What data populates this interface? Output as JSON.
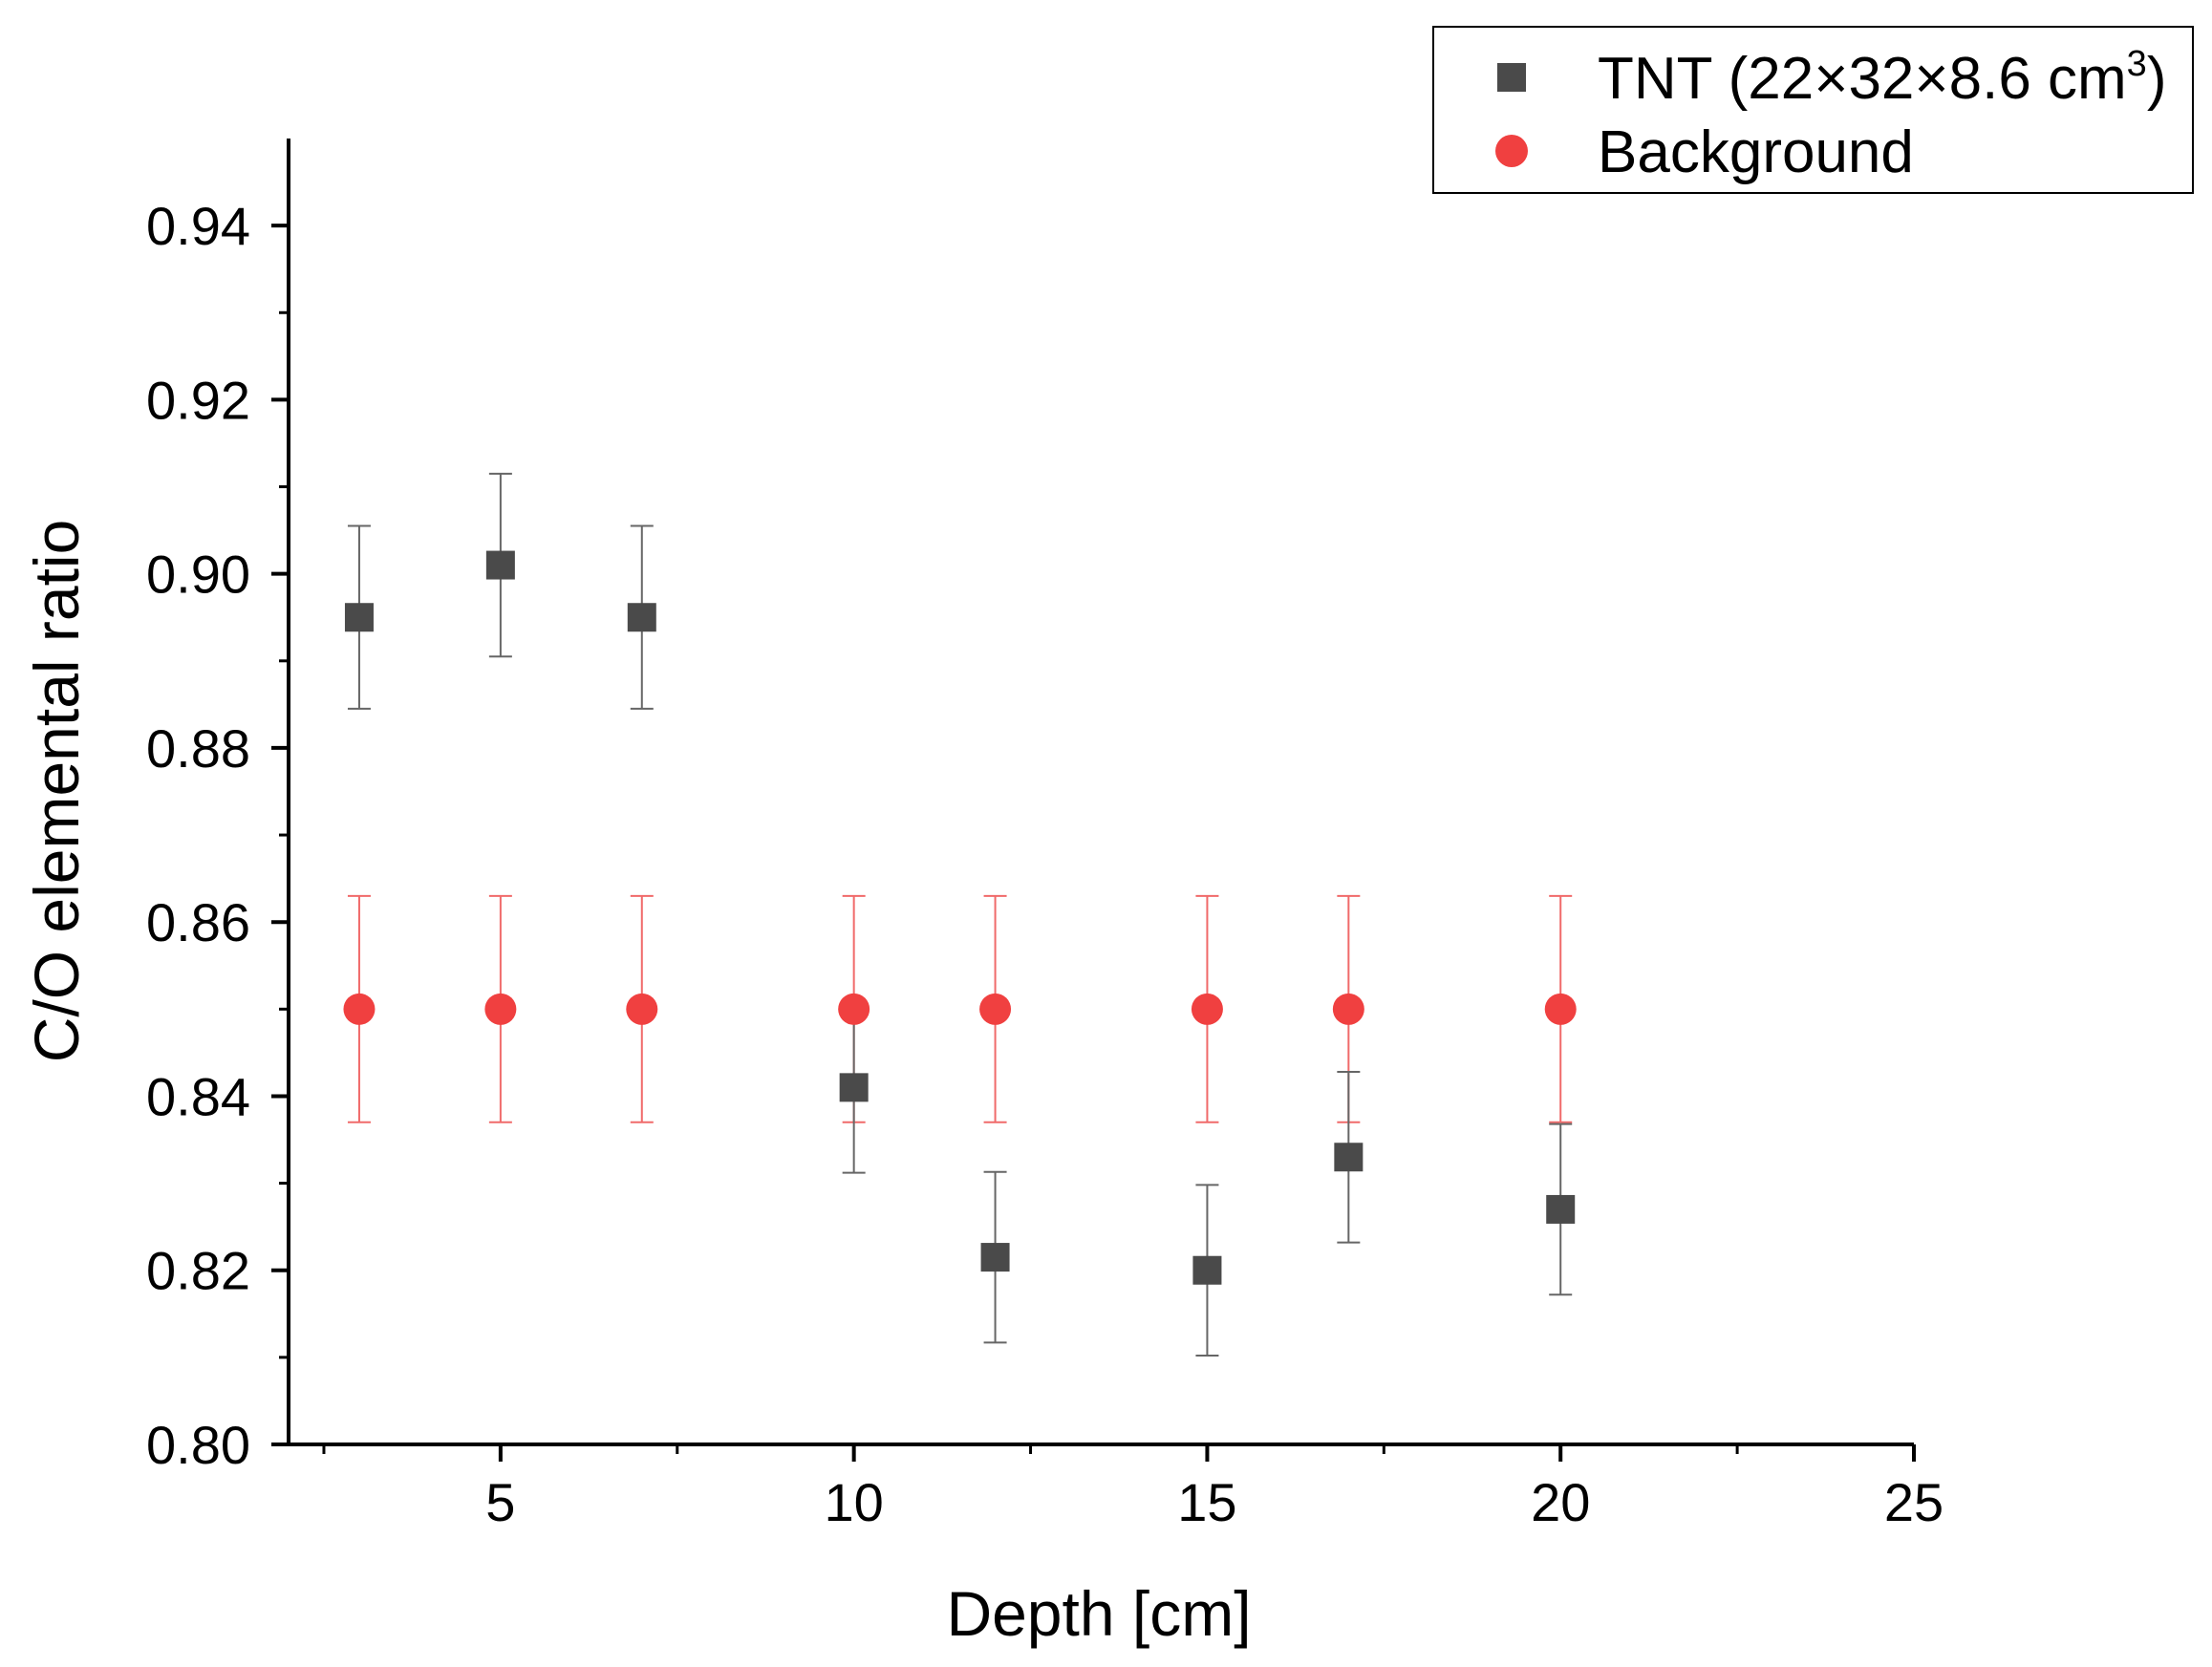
{
  "chart_data": {
    "type": "scatter",
    "title": "",
    "xlabel": "Depth [cm]",
    "ylabel": "C/O elemental ratio",
    "xlim": [
      2,
      25
    ],
    "ylim": [
      0.8,
      0.95
    ],
    "xticks": [
      5,
      10,
      15,
      20,
      25
    ],
    "xtick_labels": [
      "5",
      "10",
      "15",
      "20",
      "25"
    ],
    "xminor": [
      2.5,
      7.5,
      12.5,
      17.5,
      22.5
    ],
    "yticks": [
      0.8,
      0.82,
      0.84,
      0.86,
      0.88,
      0.9,
      0.92,
      0.94
    ],
    "ytick_labels": [
      "0.80",
      "0.82",
      "0.84",
      "0.86",
      "0.88",
      "0.90",
      "0.92",
      "0.94"
    ],
    "yminor": [
      0.81,
      0.83,
      0.85,
      0.87,
      0.89,
      0.91,
      0.93
    ],
    "grid": false,
    "legend_position": "top-right",
    "series": [
      {
        "name": "TNT (22×32×8.6 cm3)",
        "legend_main": "TNT (22×32×8.6 cm",
        "legend_sup": "3",
        "legend_tail": ")",
        "marker": "square",
        "color": "#4a4a4a",
        "x": [
          3,
          5,
          7,
          10,
          12,
          15,
          17,
          20
        ],
        "y": [
          0.895,
          0.901,
          0.895,
          0.841,
          0.8215,
          0.82,
          0.833,
          0.827
        ],
        "err": [
          0.0105,
          0.0105,
          0.0105,
          0.0098,
          0.0098,
          0.0098,
          0.0098,
          0.0098
        ]
      },
      {
        "name": "Background",
        "legend_main": "Background",
        "marker": "circle",
        "color": "#f04040",
        "x": [
          3,
          5,
          7,
          10,
          12,
          15,
          17,
          20
        ],
        "y": [
          0.85,
          0.85,
          0.85,
          0.85,
          0.85,
          0.85,
          0.85,
          0.85
        ],
        "err": [
          0.013,
          0.013,
          0.013,
          0.013,
          0.013,
          0.013,
          0.013,
          0.013
        ]
      }
    ]
  }
}
